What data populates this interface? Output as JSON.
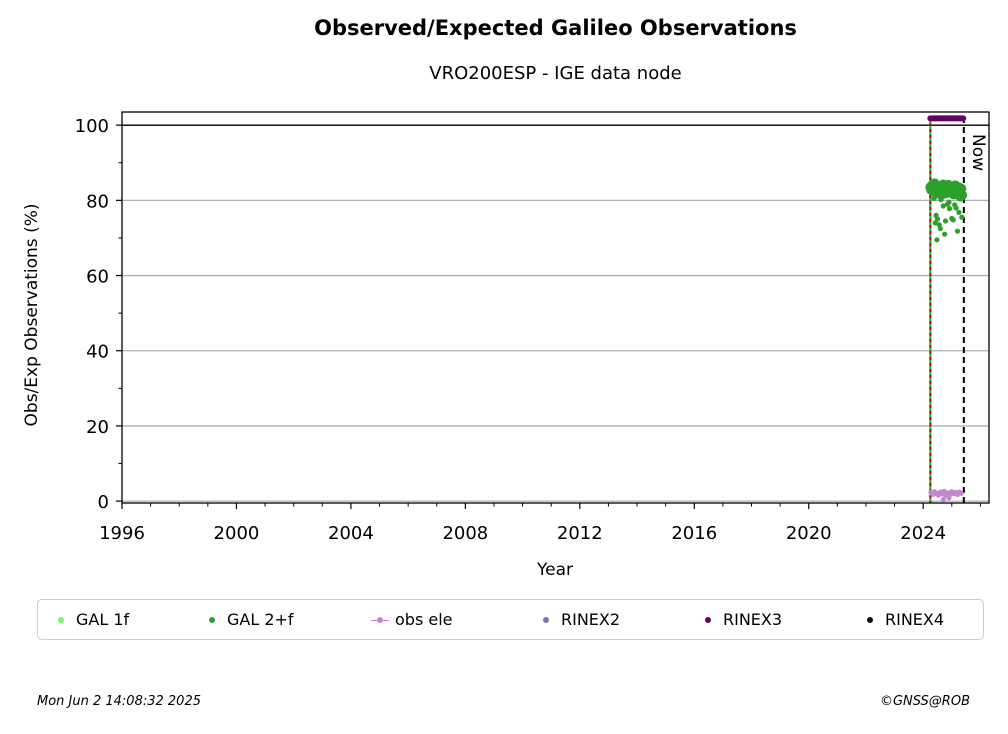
{
  "chart_data": {
    "type": "scatter",
    "title": "Observed/Expected Galileo Observations",
    "subtitle": "VRO200ESP - IGE data node",
    "xlabel": "Year",
    "ylabel": "Obs/Exp Observations (%)",
    "xlim": [
      1996,
      2026.3
    ],
    "ylim": [
      -0.5,
      103.5
    ],
    "xticks": [
      1996,
      2000,
      2004,
      2008,
      2012,
      2016,
      2020,
      2024
    ],
    "xtick_labels": [
      "1996",
      "2000",
      "2004",
      "2008",
      "2012",
      "2016",
      "2020",
      "2024"
    ],
    "yticks": [
      0,
      20,
      40,
      60,
      80,
      100
    ],
    "ytick_labels": [
      "0",
      "20",
      "40",
      "60",
      "80",
      "100"
    ],
    "grid": "horizontal",
    "reference_line_y": 100,
    "start_line_x": 2024.25,
    "now_line_x": 2025.42,
    "now_label": "Now",
    "series": [
      {
        "name": "GAL 1f",
        "color": "#66ff66",
        "x": [],
        "y": []
      },
      {
        "name": "GAL 2+f",
        "color": "#2ca02c",
        "x": [
          2024.25,
          2024.28,
          2024.31,
          2024.34,
          2024.37,
          2024.4,
          2024.43,
          2024.46,
          2024.49,
          2024.52,
          2024.55,
          2024.58,
          2024.61,
          2024.64,
          2024.67,
          2024.7,
          2024.73,
          2024.76,
          2024.79,
          2024.82,
          2024.85,
          2024.88,
          2024.91,
          2024.94,
          2024.97,
          2025.0,
          2025.03,
          2025.06,
          2025.09,
          2025.12,
          2025.15,
          2025.18,
          2025.21,
          2025.24,
          2025.27,
          2025.3,
          2025.33,
          2025.36,
          2024.38,
          2024.45,
          2024.5,
          2024.56,
          2024.62,
          2024.7,
          2024.78,
          2024.85,
          2024.92,
          2025.0,
          2025.1,
          2025.2,
          2025.3,
          2024.42,
          2024.48,
          2024.6,
          2024.75,
          2024.9,
          2025.05,
          2025.15,
          2025.25,
          2025.35
        ],
        "y": [
          83.5,
          82.8,
          84.0,
          83.2,
          82.5,
          84.5,
          83.0,
          81.8,
          82.9,
          83.6,
          82.1,
          83.8,
          82.4,
          81.5,
          83.3,
          84.2,
          82.7,
          83.0,
          81.9,
          83.9,
          82.6,
          84.1,
          83.4,
          82.2,
          83.1,
          82.8,
          83.7,
          81.6,
          82.9,
          84.0,
          83.2,
          82.3,
          81.8,
          83.5,
          82.0,
          82.6,
          83.1,
          81.4,
          80.5,
          76.0,
          75.0,
          73.5,
          80.2,
          78.5,
          74.5,
          79.0,
          77.8,
          75.2,
          78.8,
          71.8,
          81.0,
          74.0,
          69.5,
          72.5,
          71.0,
          79.5,
          74.8,
          78.0,
          76.8,
          75.5
        ]
      },
      {
        "name": "obs ele",
        "color": "#c387cf",
        "x": [
          2024.27,
          2024.33,
          2024.4,
          2024.47,
          2024.53,
          2024.6,
          2024.67,
          2024.73,
          2024.8,
          2024.87,
          2024.93,
          2025.0,
          2025.07,
          2025.13,
          2025.2,
          2025.27,
          2025.33,
          2024.7,
          2024.9
        ],
        "y": [
          2.3,
          1.8,
          2.5,
          2.0,
          1.6,
          2.4,
          1.9,
          2.6,
          1.5,
          2.2,
          1.7,
          2.5,
          2.0,
          2.3,
          1.8,
          2.4,
          2.1,
          0.4,
          0.9
        ]
      },
      {
        "name": "RINEX2",
        "color": "#8172b3",
        "x": [],
        "y": []
      },
      {
        "name": "RINEX3",
        "color": "#660066",
        "x_range": [
          2024.25,
          2025.4
        ],
        "y": 101.8
      },
      {
        "name": "RINEX4",
        "color": "#1a0a1a",
        "x": [],
        "y": []
      }
    ]
  },
  "legend": [
    "GAL 1f",
    "GAL 2+f",
    "obs ele",
    "RINEX2",
    "RINEX3",
    "RINEX4"
  ],
  "footer": {
    "timestamp": "Mon Jun  2 14:08:32 2025",
    "credit": "©GNSS@ROB"
  }
}
